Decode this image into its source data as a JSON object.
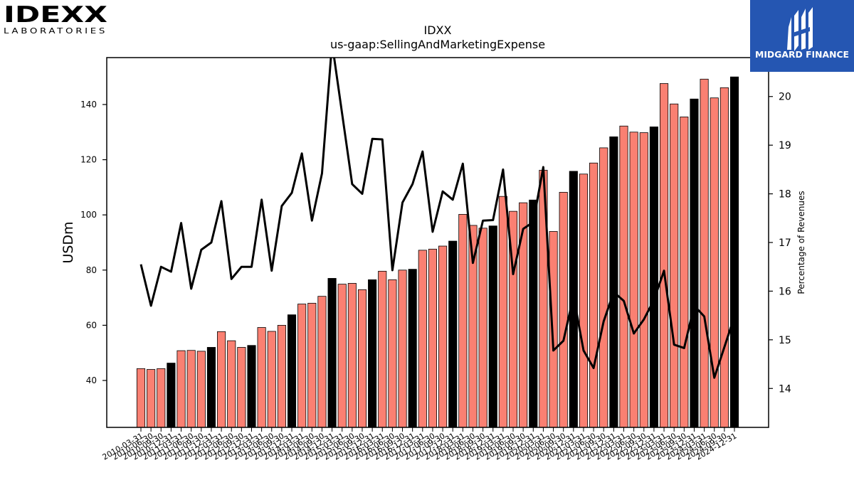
{
  "brand_left": {
    "name": "IDEXX",
    "sub": "LABORATORIES"
  },
  "brand_right": {
    "name": "MIDGARD FINANCE",
    "bg": "#2556b2"
  },
  "colors": {
    "bar_default": "#fa8072",
    "bar_annual": "#000000",
    "line": "#000000"
  },
  "chart_data": {
    "type": "bar",
    "title": "IDXX",
    "subtitle": "us-gaap:SellingAndMarketingExpense",
    "ylabel": "USDm",
    "y2label": "Percentage of Revenues",
    "ylim": [
      23,
      157
    ],
    "y2lim": [
      13.2,
      20.8
    ],
    "yticks": [
      40,
      60,
      80,
      100,
      120,
      140
    ],
    "y2ticks": [
      14,
      15,
      16,
      17,
      18,
      19,
      20
    ],
    "categories": [
      "2010-03-31",
      "2010-06-30",
      "2010-09-30",
      "2010-12-31",
      "2011-03-31",
      "2011-06-30",
      "2011-09-30",
      "2011-12-31",
      "2012-03-31",
      "2012-06-30",
      "2012-09-30",
      "2012-12-31",
      "2013-03-31",
      "2013-06-30",
      "2013-09-30",
      "2013-12-31",
      "2014-03-31",
      "2014-06-30",
      "2014-09-30",
      "2014-12-31",
      "2015-03-31",
      "2015-06-30",
      "2015-09-30",
      "2015-12-31",
      "2016-03-31",
      "2016-06-30",
      "2016-09-30",
      "2016-12-31",
      "2017-03-31",
      "2017-06-30",
      "2017-09-30",
      "2017-12-31",
      "2018-03-31",
      "2018-06-30",
      "2018-09-30",
      "2018-12-31",
      "2019-03-31",
      "2019-06-30",
      "2019-09-30",
      "2019-12-31",
      "2020-03-31",
      "2020-06-30",
      "2020-09-30",
      "2020-12-31",
      "2021-03-31",
      "2021-06-30",
      "2021-09-30",
      "2021-12-31",
      "2022-03-31",
      "2022-06-30",
      "2022-09-30",
      "2022-12-31",
      "2023-03-31",
      "2023-06-30",
      "2023-09-30",
      "2023-12-31",
      "2024-03-31",
      "2024-06-30",
      "2024-09-30",
      "2024-12-31"
    ],
    "series": [
      {
        "name": "",
        "type": "bar",
        "axis": "left",
        "values": [
          44.3,
          44.0,
          44.3,
          46.3,
          50.8,
          50.9,
          50.6,
          52.0,
          57.7,
          54.4,
          52.0,
          52.7,
          59.2,
          57.8,
          60.0,
          63.8,
          67.7,
          68.0,
          70.5,
          77.0,
          74.9,
          75.2,
          72.9,
          76.5,
          79.6,
          76.5,
          80.0,
          80.3,
          87.2,
          87.6,
          88.7,
          90.5,
          100.2,
          96.2,
          95.2,
          96.0,
          106.7,
          101.3,
          104.4,
          105.4,
          116.2,
          94.0,
          108.2,
          115.8,
          114.8,
          118.8,
          124.3,
          128.3,
          132.2,
          130.0,
          129.8,
          131.9,
          147.6,
          140.2,
          135.5,
          142.0,
          149.2,
          142.4,
          146.1,
          150.0
        ],
        "highlight_color_indices": [
          3,
          7,
          11,
          15,
          19,
          23,
          27,
          31,
          35,
          39,
          43,
          47,
          51,
          55,
          59
        ]
      },
      {
        "name": "",
        "type": "line",
        "axis": "right",
        "values": [
          16.55,
          15.7,
          16.5,
          16.4,
          17.4,
          16.05,
          16.85,
          17.0,
          17.85,
          16.25,
          16.5,
          16.5,
          17.88,
          16.42,
          17.75,
          18.02,
          18.83,
          17.45,
          18.42,
          21.1,
          19.65,
          18.2,
          18.0,
          19.13,
          19.12,
          16.43,
          17.82,
          18.2,
          18.87,
          17.22,
          18.05,
          17.88,
          18.62,
          16.58,
          17.45,
          17.46,
          18.5,
          16.35,
          17.28,
          17.42,
          18.55,
          14.78,
          14.98,
          15.9,
          14.78,
          14.42,
          15.38,
          15.98,
          15.8,
          15.13,
          15.42,
          15.82,
          16.42,
          14.9,
          14.83,
          15.7,
          15.48,
          14.22,
          14.85,
          15.48
        ]
      }
    ]
  }
}
